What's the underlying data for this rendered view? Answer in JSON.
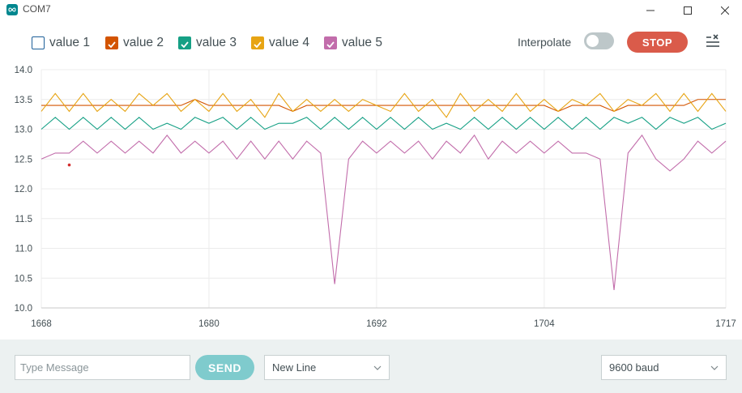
{
  "window": {
    "title": "COM7",
    "app_icon": "arduino-infinity-icon",
    "controls": [
      "minimize-icon",
      "maximize-icon",
      "close-icon"
    ]
  },
  "legend": {
    "items": [
      {
        "label": "value 1",
        "checked": false,
        "color": "#1d5f99"
      },
      {
        "label": "value 2",
        "checked": true,
        "color": "#d35400"
      },
      {
        "label": "value 3",
        "checked": true,
        "color": "#16a085"
      },
      {
        "label": "value 4",
        "checked": true,
        "color": "#e7a413"
      },
      {
        "label": "value 5",
        "checked": true,
        "color": "#c26dab"
      }
    ],
    "interpolate_label": "Interpolate",
    "interpolate_on": false,
    "stop_label": "STOP",
    "menu_icon": "clear-list-icon"
  },
  "chart_data": {
    "type": "line",
    "xlim": [
      1668,
      1717
    ],
    "ylim": [
      10.0,
      14.0
    ],
    "x_ticks": [
      "1668",
      "1680",
      "1692",
      "1704",
      "1717"
    ],
    "y_ticks": [
      "10.0",
      "10.5",
      "11.0",
      "11.5",
      "12.0",
      "12.5",
      "13.0",
      "13.5",
      "14.0"
    ],
    "x": [
      1668,
      1669,
      1670,
      1671,
      1672,
      1673,
      1674,
      1675,
      1676,
      1677,
      1678,
      1679,
      1680,
      1681,
      1682,
      1683,
      1684,
      1685,
      1686,
      1687,
      1688,
      1689,
      1690,
      1691,
      1692,
      1693,
      1694,
      1695,
      1696,
      1697,
      1698,
      1699,
      1700,
      1701,
      1702,
      1703,
      1704,
      1705,
      1706,
      1707,
      1708,
      1709,
      1710,
      1711,
      1712,
      1713,
      1714,
      1715,
      1716,
      1717
    ],
    "series": [
      {
        "name": "value 2",
        "color": "#d35400",
        "values": [
          13.4,
          13.4,
          13.4,
          13.4,
          13.4,
          13.4,
          13.4,
          13.4,
          13.4,
          13.4,
          13.4,
          13.5,
          13.4,
          13.4,
          13.4,
          13.4,
          13.4,
          13.4,
          13.3,
          13.4,
          13.4,
          13.4,
          13.4,
          13.4,
          13.4,
          13.4,
          13.4,
          13.4,
          13.4,
          13.4,
          13.4,
          13.4,
          13.4,
          13.4,
          13.4,
          13.4,
          13.4,
          13.3,
          13.4,
          13.4,
          13.4,
          13.3,
          13.4,
          13.4,
          13.4,
          13.4,
          13.4,
          13.5,
          13.5,
          13.5
        ]
      },
      {
        "name": "value 3",
        "color": "#16a085",
        "values": [
          13.0,
          13.2,
          13.0,
          13.2,
          13.0,
          13.2,
          13.0,
          13.2,
          13.0,
          13.1,
          13.0,
          13.2,
          13.1,
          13.2,
          13.0,
          13.2,
          13.0,
          13.1,
          13.1,
          13.2,
          13.0,
          13.2,
          13.0,
          13.2,
          13.0,
          13.2,
          13.0,
          13.2,
          13.0,
          13.1,
          13.0,
          13.2,
          13.0,
          13.2,
          13.0,
          13.2,
          13.0,
          13.2,
          13.0,
          13.2,
          13.0,
          13.2,
          13.1,
          13.2,
          13.0,
          13.2,
          13.1,
          13.2,
          13.0,
          13.1
        ]
      },
      {
        "name": "value 4",
        "color": "#e7a413",
        "values": [
          13.3,
          13.6,
          13.3,
          13.6,
          13.3,
          13.5,
          13.3,
          13.6,
          13.4,
          13.6,
          13.3,
          13.5,
          13.3,
          13.6,
          13.3,
          13.5,
          13.2,
          13.6,
          13.3,
          13.5,
          13.3,
          13.5,
          13.3,
          13.5,
          13.4,
          13.3,
          13.6,
          13.3,
          13.5,
          13.2,
          13.6,
          13.3,
          13.5,
          13.3,
          13.6,
          13.3,
          13.5,
          13.3,
          13.5,
          13.4,
          13.6,
          13.3,
          13.5,
          13.4,
          13.6,
          13.3,
          13.6,
          13.3,
          13.6,
          13.3
        ]
      },
      {
        "name": "value 5",
        "color": "#c26dab",
        "values": [
          12.5,
          12.6,
          12.6,
          12.8,
          12.6,
          12.8,
          12.6,
          12.8,
          12.6,
          12.9,
          12.6,
          12.8,
          12.6,
          12.8,
          12.5,
          12.8,
          12.5,
          12.8,
          12.5,
          12.8,
          12.6,
          10.4,
          12.5,
          12.8,
          12.6,
          12.8,
          12.6,
          12.8,
          12.5,
          12.8,
          12.6,
          12.9,
          12.5,
          12.8,
          12.6,
          12.8,
          12.6,
          12.8,
          12.6,
          12.6,
          12.5,
          10.3,
          12.6,
          12.9,
          12.5,
          12.3,
          12.5,
          12.8,
          12.6,
          12.8
        ]
      }
    ],
    "points": [
      {
        "x": 1670,
        "y": 12.4,
        "color": "#d32f2f"
      }
    ],
    "grid": true
  },
  "footer": {
    "message_placeholder": "Type Message",
    "send_label": "SEND",
    "line_ending": "New Line",
    "baud": "9600 baud"
  }
}
